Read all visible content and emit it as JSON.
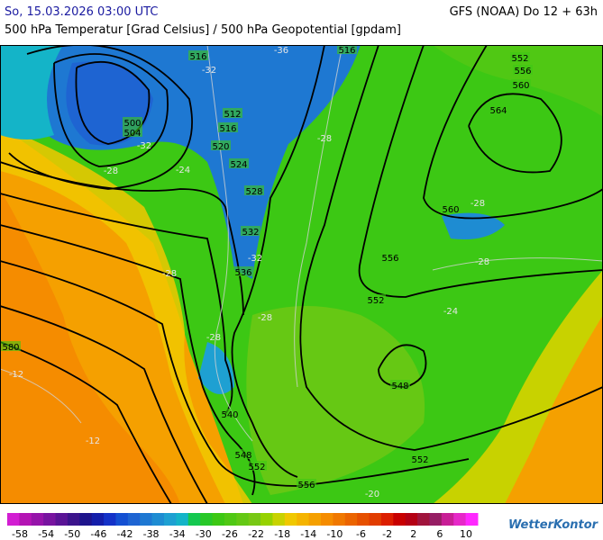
{
  "header": {
    "date": "So, 15.03.2026 03:00 UTC",
    "model": "GFS (NOAA) Do 12 + 63h",
    "subtitle": "500 hPa Temperatur [Grad Celsius] / 500 hPa Geopotential [gpdam]"
  },
  "contour_labels": [
    "516",
    "516",
    "512",
    "516",
    "520",
    "524",
    "528",
    "532",
    "536",
    "500",
    "504",
    "552",
    "556",
    "560",
    "564",
    "560",
    "556",
    "552",
    "548",
    "540",
    "548",
    "552",
    "552",
    "556",
    "580"
  ],
  "isotherm_labels": [
    "-32",
    "-36",
    "-32",
    "-28",
    "-28",
    "-24",
    "-28",
    "-28",
    "-28",
    "-32",
    "-28",
    "-28",
    "-24",
    "-12",
    "-12",
    "-20"
  ],
  "legend": {
    "labels": [
      "-58",
      "-54",
      "-50",
      "-46",
      "-42",
      "-38",
      "-34",
      "-30",
      "-26",
      "-22",
      "-18",
      "-14",
      "-10",
      "-6",
      "-2",
      "2",
      "6",
      "10"
    ],
    "colors": [
      "#d21ed2",
      "#b414b4",
      "#9614aa",
      "#7814a0",
      "#5a1496",
      "#3c148c",
      "#1e148c",
      "#141eaa",
      "#1432c8",
      "#1450d2",
      "#1e64d2",
      "#1e78d2",
      "#1e8cd2",
      "#1ea0d2",
      "#14b4c8",
      "#14c850",
      "#28c828",
      "#3cc814",
      "#50c814",
      "#64c814",
      "#78c814",
      "#96d200",
      "#c8d200",
      "#f0c800",
      "#f5b400",
      "#f5a000",
      "#f58c00",
      "#f07800",
      "#eb6400",
      "#e65000",
      "#e13c00",
      "#dc1e00",
      "#c80000",
      "#b40014",
      "#a0143c",
      "#961e64",
      "#c81e96",
      "#e628c8",
      "#ff28ff"
    ]
  },
  "brand": "WetterKontor"
}
